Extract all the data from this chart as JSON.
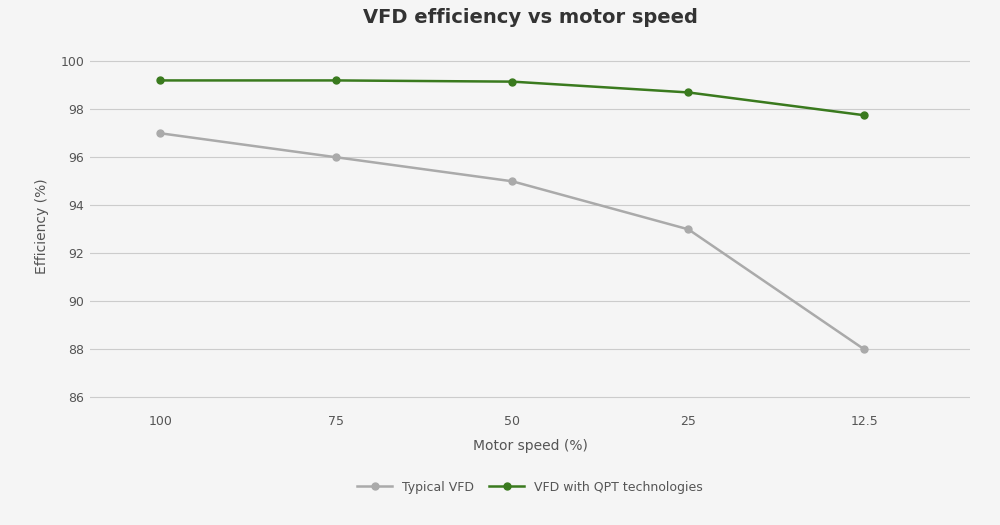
{
  "title": "VFD efficiency vs motor speed",
  "xlabel": "Motor speed (%)",
  "ylabel": "Efficiency (%)",
  "x_labels": [
    "100",
    "75",
    "50",
    "25",
    "12.5"
  ],
  "x_values": [
    0,
    1,
    2,
    3,
    4
  ],
  "vfd_typical": [
    97.0,
    96.0,
    95.0,
    93.0,
    88.0
  ],
  "vfd_qpt": [
    99.2,
    99.2,
    99.15,
    98.7,
    97.75
  ],
  "vfd_typical_color": "#aaaaaa",
  "vfd_qpt_color": "#3a7a1e",
  "ylim": [
    85.5,
    100.8
  ],
  "yticks": [
    86,
    88,
    90,
    92,
    94,
    96,
    98,
    100
  ],
  "background_color": "#f5f5f5",
  "plot_background_color": "#f5f5f5",
  "grid_color": "#cccccc",
  "title_fontsize": 14,
  "axis_label_fontsize": 10,
  "tick_fontsize": 9,
  "legend_fontsize": 9,
  "line_width": 1.8,
  "marker_size": 5
}
